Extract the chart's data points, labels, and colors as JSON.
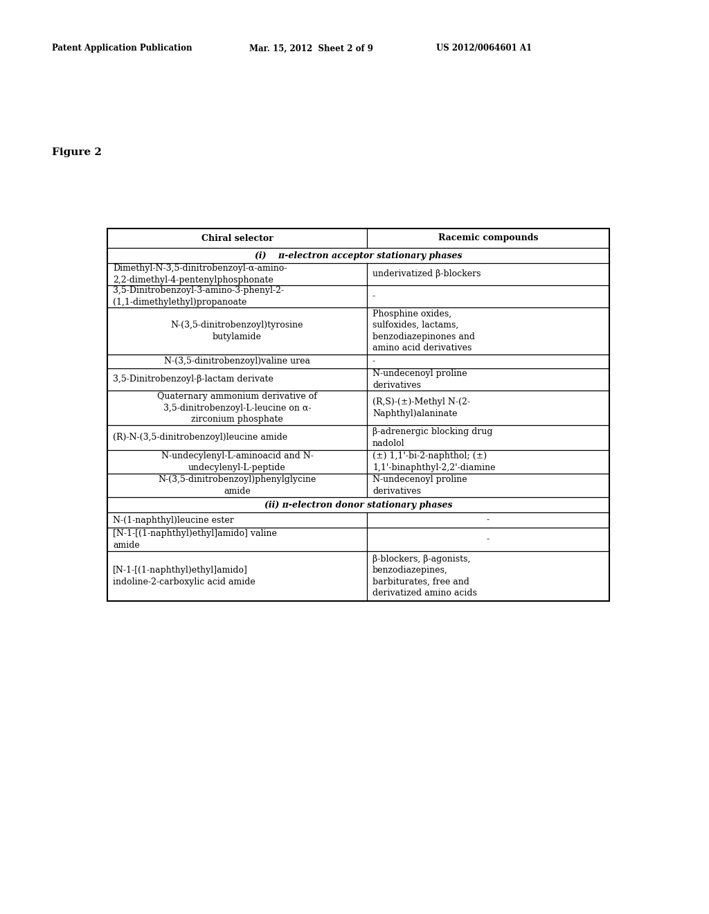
{
  "header_line1": "Patent Application Publication",
  "header_date": "Mar. 15, 2012  Sheet 2 of 9",
  "header_patent": "US 2012/0064601 A1",
  "figure_label": "Figure 2",
  "col1_header": "Chiral selector",
  "col2_header": "Racemic compounds",
  "section1_label": "(i)    π-electron acceptor stationary phases",
  "section2_label": "(ii) π-electron donor stationary phases",
  "rows": [
    {
      "col1": "Dimethyl-N-3,5-dinitrobenzoyl-α-amino-\n2,2-dimethyl-4-pentenylphosphonate",
      "col2": "underivatized β-blockers",
      "col1_align": "left",
      "col2_align": "left",
      "section": 1
    },
    {
      "col1": "3,5-Dinitrobenzoyl-3-amino-3-phenyl-2-\n(1,1-dimethylethyl)propanoate",
      "col2": "-",
      "col1_align": "left",
      "col2_align": "left",
      "section": 1
    },
    {
      "col1": "N-(3,5-dinitrobenzoyl)tyrosine\nbutylamide",
      "col2": "Phosphine oxides,\nsulfoxides, lactams,\nbenzodiazepinones and\namino acid derivatives",
      "col1_align": "center",
      "col2_align": "left",
      "section": 1
    },
    {
      "col1": "N-(3,5-dinitrobenzoyl)valine urea",
      "col2": "-",
      "col1_align": "center",
      "col2_align": "left",
      "section": 1
    },
    {
      "col1": "3,5-Dinitrobenzoyl-β-lactam derivate",
      "col2": "N-undecenoyl proline\nderivatives",
      "col1_align": "left",
      "col2_align": "left",
      "section": 1
    },
    {
      "col1": "Quaternary ammonium derivative of\n3,5-dinitrobenzoyl-L-leucine on α-\nzirconium phosphate",
      "col2": "(R,S)-(±)-Methyl N-(2-\nNaphthyl)alaninate",
      "col1_align": "center",
      "col2_align": "left",
      "section": 1
    },
    {
      "col1": "(R)-N-(3,5-dinitrobenzoyl)leucine amide",
      "col2": "β-adrenergic blocking drug\nnadolol",
      "col1_align": "left",
      "col2_align": "left",
      "section": 1
    },
    {
      "col1": "N-undecylenyl-L-aminoacid and N-\nundecylenyl-L-peptide",
      "col2": "(±) 1,1'-bi-2-naphthol; (±)\n1,1'-binaphthyl-2,2'-diamine",
      "col1_align": "center",
      "col2_align": "left",
      "section": 1
    },
    {
      "col1": "N-(3,5-dinitrobenzoyl)phenylglycine\namide",
      "col2": "N-undecenoyl proline\nderivatives",
      "col1_align": "center",
      "col2_align": "left",
      "section": 1
    },
    {
      "col1": "N-(1-naphthyl)leucine ester",
      "col2": "-",
      "col1_align": "left",
      "col2_align": "center",
      "section": 2
    },
    {
      "col1": "[N-1-[(1-naphthyl)ethyl]amido] valine\namide",
      "col2": "-",
      "col1_align": "left",
      "col2_align": "center",
      "section": 2
    },
    {
      "col1": "[N-1-[(1-naphthyl)ethyl]amido]\nindoline-2-carboxylic acid amide",
      "col2": "β-blockers, β-agonists,\nbenzodiazepines,\nbarbiturates, free and\nderivatized amino acids",
      "col1_align": "left",
      "col2_align": "left",
      "section": 2
    }
  ],
  "background_color": "#ffffff",
  "text_color": "#000000",
  "line_color": "#000000",
  "body_font_size": 9.0
}
